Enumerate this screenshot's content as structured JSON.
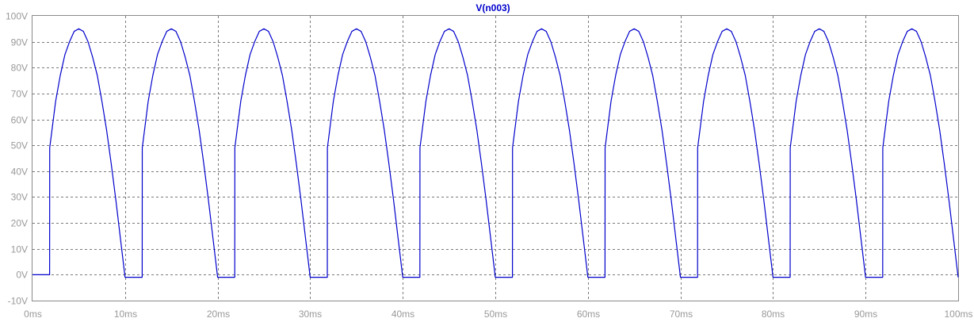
{
  "chart_data": {
    "type": "line",
    "title": "V(n003)",
    "xlabel": "",
    "ylabel": "",
    "xlim": [
      0,
      100
    ],
    "ylim": [
      -10,
      100
    ],
    "x_ticks": [
      "0ms",
      "10ms",
      "20ms",
      "30ms",
      "40ms",
      "50ms",
      "60ms",
      "70ms",
      "80ms",
      "90ms",
      "100ms"
    ],
    "y_ticks": [
      "100V",
      "90V",
      "80V",
      "70V",
      "60V",
      "50V",
      "40V",
      "30V",
      "20V",
      "10V",
      "0V",
      "-10V"
    ],
    "grid": true,
    "x_unit": "ms",
    "y_unit": "V",
    "series": [
      {
        "name": "V(n003)",
        "color": "#0000cc",
        "amplitude_V": 95,
        "period_ms": 10,
        "turn_on_V": 49,
        "off_level_V": -1,
        "x": [
          0,
          1.85,
          1.86,
          2.5,
          3.0,
          3.5,
          4.0,
          4.5,
          5.0,
          5.5,
          6.0,
          6.5,
          7.0,
          7.5,
          8.0,
          8.5,
          9.0,
          9.5,
          10.0,
          11.5,
          11.85,
          11.86,
          12.5,
          13.0,
          13.5,
          14.0,
          14.5,
          15.0,
          15.5,
          16.0,
          16.5,
          17.0,
          17.5,
          18.0,
          18.5,
          19.0,
          19.5,
          20.0,
          21.5,
          21.85,
          21.86,
          22.5,
          23.0,
          23.5,
          24.0,
          24.5,
          25.0,
          25.5,
          26.0,
          26.5,
          27.0,
          27.5,
          28.0,
          28.5,
          29.0,
          29.5,
          30.0,
          31.5,
          31.85,
          31.86,
          32.5,
          33.0,
          33.5,
          34.0,
          34.5,
          35.0,
          35.5,
          36.0,
          36.5,
          37.0,
          37.5,
          38.0,
          38.5,
          39.0,
          39.5,
          40.0,
          41.5,
          41.85,
          41.86,
          42.5,
          43.0,
          43.5,
          44.0,
          44.5,
          45.0,
          45.5,
          46.0,
          46.5,
          47.0,
          47.5,
          48.0,
          48.5,
          49.0,
          49.5,
          50.0,
          51.5,
          51.85,
          51.86,
          52.5,
          53.0,
          53.5,
          54.0,
          54.5,
          55.0,
          55.5,
          56.0,
          56.5,
          57.0,
          57.5,
          58.0,
          58.5,
          59.0,
          59.5,
          60.0,
          61.5,
          61.85,
          61.86,
          62.5,
          63.0,
          63.5,
          64.0,
          64.5,
          65.0,
          65.5,
          66.0,
          66.5,
          67.0,
          67.5,
          68.0,
          68.5,
          69.0,
          69.5,
          70.0,
          71.5,
          71.85,
          71.86,
          72.5,
          73.0,
          73.5,
          74.0,
          74.5,
          75.0,
          75.5,
          76.0,
          76.5,
          77.0,
          77.5,
          78.0,
          78.5,
          79.0,
          79.5,
          80.0,
          81.5,
          81.85,
          81.86,
          82.5,
          83.0,
          83.5,
          84.0,
          84.5,
          85.0,
          85.5,
          86.0,
          86.5,
          87.0,
          87.5,
          88.0,
          88.5,
          89.0,
          89.5,
          90.0,
          91.5,
          91.85,
          91.86,
          92.5,
          93.0,
          93.5,
          94.0,
          94.5,
          95.0,
          95.5,
          96.0,
          96.5,
          97.0,
          97.5,
          98.0,
          98.5,
          99.0,
          99.5,
          100.0
        ],
        "y": [
          0,
          0,
          49,
          67,
          77,
          85,
          90,
          94,
          95,
          94,
          90,
          84,
          77,
          67,
          56,
          43,
          29,
          14,
          -1,
          -1,
          -1,
          49,
          67,
          77,
          85,
          90,
          94,
          95,
          94,
          90,
          84,
          77,
          67,
          56,
          43,
          29,
          14,
          -1,
          -1,
          -1,
          49,
          67,
          77,
          85,
          90,
          94,
          95,
          94,
          90,
          84,
          77,
          67,
          56,
          43,
          29,
          14,
          -1,
          -1,
          -1,
          49,
          67,
          77,
          85,
          90,
          94,
          95,
          94,
          90,
          84,
          77,
          67,
          56,
          43,
          29,
          14,
          -1,
          -1,
          -1,
          49,
          67,
          77,
          85,
          90,
          94,
          95,
          94,
          90,
          84,
          77,
          67,
          56,
          43,
          29,
          14,
          -1,
          -1,
          -1,
          49,
          67,
          77,
          85,
          90,
          94,
          95,
          94,
          90,
          84,
          77,
          67,
          56,
          43,
          29,
          14,
          -1,
          -1,
          -1,
          49,
          67,
          77,
          85,
          90,
          94,
          95,
          94,
          90,
          84,
          77,
          67,
          56,
          43,
          29,
          14,
          -1,
          -1,
          -1,
          49,
          67,
          77,
          85,
          90,
          94,
          95,
          94,
          90,
          84,
          77,
          67,
          56,
          43,
          29,
          14,
          -1,
          -1,
          -1,
          49,
          67,
          77,
          85,
          90,
          94,
          95,
          94,
          90,
          84,
          77,
          67,
          56,
          43,
          29,
          14,
          -1,
          -1,
          -1,
          49,
          67,
          77,
          85,
          90,
          94,
          95,
          94,
          90,
          84,
          77,
          67,
          56,
          43,
          29,
          14,
          -1
        ]
      }
    ]
  }
}
